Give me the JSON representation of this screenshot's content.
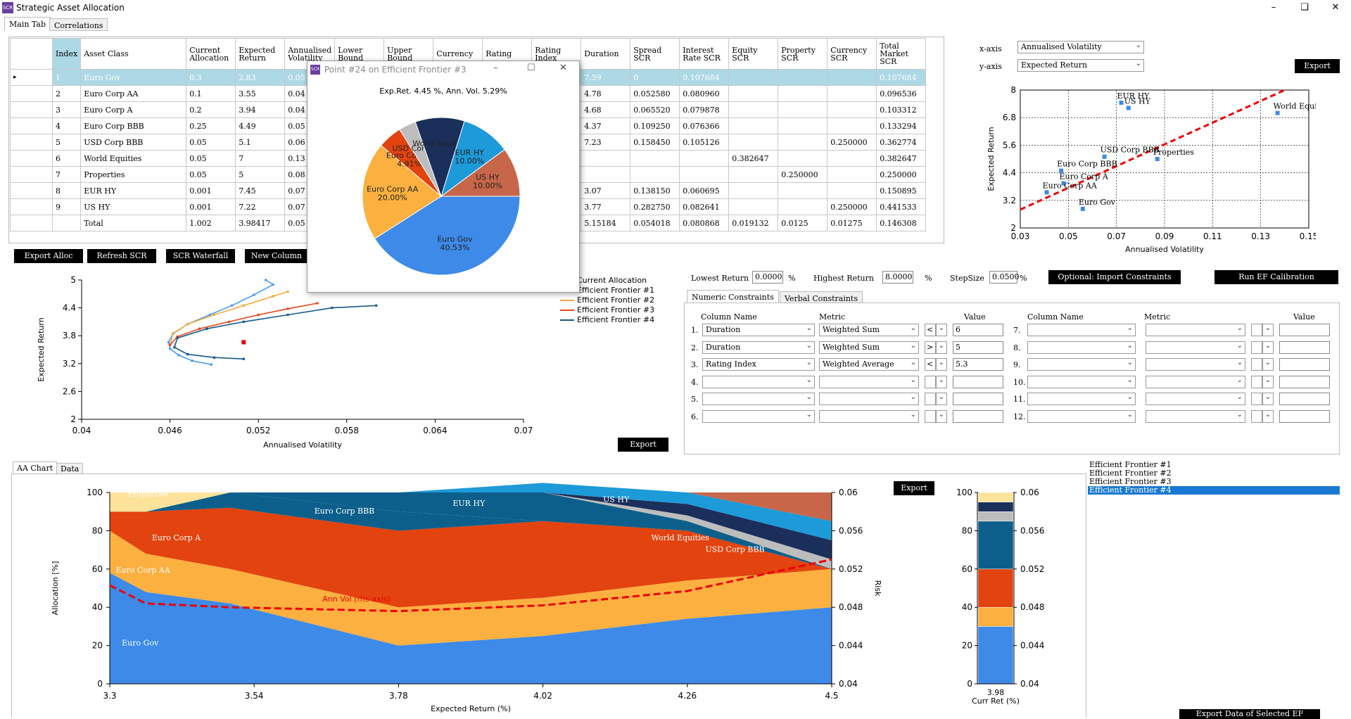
{
  "window": {
    "title": "Strategic Asset Allocation",
    "icon_text": "SCR"
  },
  "main_tabs": [
    "Main Tab",
    "Correlations"
  ],
  "table": {
    "headers": [
      "Index",
      "Asset Class",
      "Current Allocation",
      "Expected Return",
      "Annualised Volatility",
      "Lower Bound",
      "Upper Bound",
      "Currency",
      "Rating",
      "Rating Index",
      "Duration",
      "Spread SCR",
      "Interest Rate SCR",
      "Equity SCR",
      "Property SCR",
      "Currency SCR",
      "Total Market SCR"
    ],
    "rows": [
      [
        "1",
        "Euro Gov",
        "0.3",
        "2.83",
        "0.05",
        "",
        "",
        "",
        "",
        "",
        "7.59",
        "0",
        "0.107684",
        "",
        "",
        "",
        "0.107684"
      ],
      [
        "2",
        "Euro Corp AA",
        "0.1",
        "3.55",
        "0.04",
        "",
        "",
        "",
        "",
        "",
        "4.78",
        "0.052580",
        "0.080960",
        "",
        "",
        "",
        "0.096536"
      ],
      [
        "3",
        "Euro Corp A",
        "0.2",
        "3.94",
        "0.04",
        "",
        "",
        "",
        "",
        "",
        "4.68",
        "0.065520",
        "0.079878",
        "",
        "",
        "",
        "0.103312"
      ],
      [
        "4",
        "Euro Corp BBB",
        "0.25",
        "4.49",
        "0.05",
        "",
        "",
        "",
        "",
        "",
        "4.37",
        "0.109250",
        "0.076366",
        "",
        "",
        "",
        "0.133294"
      ],
      [
        "5",
        "USD Corp BBB",
        "0.05",
        "5.1",
        "0.06",
        "",
        "",
        "",
        "",
        "",
        "7.23",
        "0.158450",
        "0.105126",
        "",
        "",
        "0.250000",
        "0.362774"
      ],
      [
        "6",
        "World Equities",
        "0.05",
        "7",
        "0.13",
        "",
        "",
        "",
        "",
        "",
        "",
        "",
        "",
        "0.382647",
        "",
        "",
        "0.382647"
      ],
      [
        "7",
        "Properties",
        "0.05",
        "5",
        "0.08",
        "",
        "",
        "",
        "",
        "",
        "",
        "",
        "",
        "",
        "0.250000",
        "",
        "0.250000"
      ],
      [
        "8",
        "EUR HY",
        "0.001",
        "7.45",
        "0.07",
        "",
        "",
        "",
        "",
        "",
        "3.07",
        "0.138150",
        "0.060695",
        "",
        "",
        "",
        "0.150895"
      ],
      [
        "9",
        "US HY",
        "0.001",
        "7.22",
        "0.07",
        "",
        "",
        "",
        "",
        "",
        "3.77",
        "0.282750",
        "0.082641",
        "",
        "",
        "0.250000",
        "0.441533"
      ],
      [
        "",
        "Total",
        "1.002",
        "3.98417",
        "0.05",
        "",
        "",
        "",
        "",
        "",
        "5.15184",
        "0.054018",
        "0.080868",
        "0.019132",
        "0.0125",
        "0.01275",
        "0.146308"
      ]
    ]
  },
  "buttons": {
    "export_alloc": "Export Alloc",
    "refresh_scr": "Refresh SCR",
    "scr_waterfall": "SCR Waterfall",
    "new_column": "New Column",
    "export": "Export",
    "import_constraints": "Optional: Import Constraints",
    "run_ef": "Run EF Calibration",
    "export_selected_ef": "Export Data of Selected EF"
  },
  "popup": {
    "title": "Point #24 on Efficient Frontier #3",
    "subtitle": "Exp.Ret. 4.45 %, Ann. Vol. 5.29%",
    "buttons": [
      "–",
      "☐",
      "✕"
    ]
  },
  "scatter_controls": {
    "x_label": "x-axis",
    "x_value": "Annualised Volatility",
    "y_label": "y-axis",
    "y_value": "Expected Return"
  },
  "ef_legend": [
    "Current Allocation",
    "Efficient Frontier #1",
    "Efficient Frontier #2",
    "Efficient Frontier #3",
    "Efficient Frontier #4"
  ],
  "calibration": {
    "lowest_label": "Lowest Return",
    "lowest_value": "0.0000",
    "pct1": "%",
    "highest_label": "Highest Return",
    "highest_value": "8.0000",
    "pct2": "%",
    "step_label": "StepSize",
    "step_value": "0.0500",
    "pct3": "%"
  },
  "constraint_tabs": [
    "Numeric Constraints",
    "Verbal Constraints"
  ],
  "constraints": {
    "col_headers": [
      "Column Name",
      "Metric",
      "Value",
      "Column Name",
      "Metric",
      "Value"
    ],
    "left": [
      {
        "n": "1.",
        "col": "Duration",
        "metric": "Weighted Sum",
        "op": "<",
        "val": "6"
      },
      {
        "n": "2.",
        "col": "Duration",
        "metric": "Weighted Sum",
        "op": ">",
        "val": "5"
      },
      {
        "n": "3.",
        "col": "Rating Index",
        "metric": "Weighted Average",
        "op": "<",
        "val": "5.3"
      },
      {
        "n": "4.",
        "col": "",
        "metric": "",
        "op": "",
        "val": ""
      },
      {
        "n": "5.",
        "col": "",
        "metric": "",
        "op": "",
        "val": ""
      },
      {
        "n": "6.",
        "col": "",
        "metric": "",
        "op": "",
        "val": ""
      }
    ],
    "right": [
      {
        "n": "7."
      },
      {
        "n": "8."
      },
      {
        "n": "9."
      },
      {
        "n": "10."
      },
      {
        "n": "11."
      },
      {
        "n": "12."
      }
    ]
  },
  "aa_tabs": [
    "AA Chart",
    "Data"
  ],
  "ef_list": [
    "Efficient Frontier #1",
    "Efficient Frontier #2",
    "Efficient Frontier #3",
    "Efficient Frontier #4"
  ],
  "colors": {
    "euro_gov": "#3d8ae8",
    "euro_corp_aa": "#fbb040",
    "euro_corp_a": "#e2430f",
    "euro_corp_bbb": "#0c5f8a",
    "eur_hy": "#1d9ad8",
    "us_hy": "#c8664a",
    "world_equities": "#1a2f5a",
    "usd_corp_bbb": "#bdbdbd",
    "properties": "#fde39a",
    "ef1": "#4b9bef",
    "ef2": "#f6a93b",
    "ef3": "#e8451a",
    "ef4": "#165a8a",
    "current": "#e30000"
  },
  "chart_data": [
    {
      "type": "pie",
      "title": "Exp.Ret. 4.45 %, Ann. Vol. 5.29%",
      "slices": [
        {
          "name": "Euro Gov",
          "value": 40.53,
          "label": "40.53%"
        },
        {
          "name": "Euro Corp AA",
          "value": 20.0,
          "label": "20.00%"
        },
        {
          "name": "Euro Corp A",
          "value": 4.91,
          "label": "4.91%"
        },
        {
          "name": "USD Corp BBB",
          "value": 3.5,
          "label": ""
        },
        {
          "name": "World Equities",
          "value": 10.0,
          "label": ""
        },
        {
          "name": "EUR HY",
          "value": 10.0,
          "label": "10.00%"
        },
        {
          "name": "US HY",
          "value": 10.0,
          "label": "10.00%"
        }
      ]
    },
    {
      "type": "scatter",
      "xlabel": "Annualised Volatility",
      "ylabel": "Expected Return",
      "xlim": [
        0.03,
        0.15
      ],
      "ylim": [
        2,
        8
      ],
      "xticks": [
        "0.03",
        "0.05",
        "0.07",
        "0.09",
        "0.11",
        "0.13",
        "0.15"
      ],
      "yticks": [
        "2",
        "3.2",
        "4.4",
        "5.6",
        "6.8",
        "8"
      ],
      "points": [
        {
          "name": "EUR HY",
          "x": 0.072,
          "y": 7.45
        },
        {
          "name": "US HY",
          "x": 0.075,
          "y": 7.22
        },
        {
          "name": "World Equities",
          "x": 0.137,
          "y": 7.0
        },
        {
          "name": "USD Corp BBB",
          "x": 0.065,
          "y": 5.1
        },
        {
          "name": "Properties",
          "x": 0.087,
          "y": 5.0
        },
        {
          "name": "Euro Corp BBB",
          "x": 0.047,
          "y": 4.49
        },
        {
          "name": "Euro Corp A",
          "x": 0.048,
          "y": 3.94
        },
        {
          "name": "Euro Corp AA",
          "x": 0.041,
          "y": 3.55
        },
        {
          "name": "Euro Gov",
          "x": 0.056,
          "y": 2.83
        }
      ],
      "trendline": [
        [
          0.03,
          2.8
        ],
        [
          0.14,
          8.0
        ]
      ]
    },
    {
      "type": "line",
      "xlabel": "Annualised Volatility",
      "ylabel": "Expected Return",
      "xlim": [
        0.04,
        0.07
      ],
      "ylim": [
        2,
        5
      ],
      "xticks": [
        "0.04",
        "0.046",
        "0.052",
        "0.058",
        "0.064",
        "0.07"
      ],
      "yticks": [
        "2",
        "2.6",
        "3.2",
        "3.8",
        "4.4",
        "5"
      ],
      "current": {
        "x": 0.051,
        "y": 3.66
      },
      "series": [
        {
          "name": "Efficient Frontier #1",
          "points": [
            [
              0.0488,
              3.18
            ],
            [
              0.0475,
              3.26
            ],
            [
              0.0466,
              3.38
            ],
            [
              0.046,
              3.52
            ],
            [
              0.0459,
              3.66
            ],
            [
              0.0462,
              3.84
            ],
            [
              0.0472,
              4.05
            ],
            [
              0.0487,
              4.25
            ],
            [
              0.0502,
              4.45
            ],
            [
              0.0517,
              4.68
            ],
            [
              0.053,
              4.9
            ],
            [
              0.0525,
              5.0
            ]
          ]
        },
        {
          "name": "Efficient Frontier #2",
          "points": [
            [
              0.046,
              3.6
            ],
            [
              0.0462,
              3.85
            ],
            [
              0.0472,
              4.05
            ],
            [
              0.049,
              4.25
            ],
            [
              0.051,
              4.45
            ],
            [
              0.053,
              4.65
            ],
            [
              0.054,
              4.75
            ]
          ]
        },
        {
          "name": "Efficient Frontier #3",
          "points": [
            [
              0.046,
              3.6
            ],
            [
              0.0465,
              3.78
            ],
            [
              0.048,
              3.95
            ],
            [
              0.05,
              4.1
            ],
            [
              0.052,
              4.25
            ],
            [
              0.054,
              4.38
            ],
            [
              0.056,
              4.5
            ]
          ]
        },
        {
          "name": "Efficient Frontier #4",
          "points": [
            [
              0.051,
              3.3
            ],
            [
              0.049,
              3.33
            ],
            [
              0.0472,
              3.4
            ],
            [
              0.0463,
              3.55
            ],
            [
              0.0465,
              3.75
            ],
            [
              0.0485,
              3.95
            ],
            [
              0.051,
              4.1
            ],
            [
              0.054,
              4.25
            ],
            [
              0.057,
              4.4
            ],
            [
              0.06,
              4.45
            ]
          ]
        }
      ]
    },
    {
      "type": "area",
      "xlabel": "Expected Return (%)",
      "ylabel": "Allocation [%]",
      "y2label": "Risk",
      "xlim": [
        3.3,
        4.5
      ],
      "ylim": [
        0,
        100
      ],
      "y2lim": [
        0.04,
        0.06
      ],
      "xticks": [
        "3.3",
        "3.54",
        "3.78",
        "4.02",
        "4.26",
        "4.5"
      ],
      "yticks": [
        "0",
        "20",
        "40",
        "60",
        "80",
        "100"
      ],
      "y2ticks": [
        "0.04",
        "0.044",
        "0.048",
        "0.052",
        "0.056",
        "0.06"
      ],
      "x": [
        3.3,
        3.36,
        3.5,
        3.78,
        4.02,
        4.26,
        4.5
      ],
      "series": [
        {
          "name": "Euro Gov",
          "values": [
            58,
            48,
            42,
            20,
            25,
            34,
            40
          ]
        },
        {
          "name": "Euro Corp AA",
          "values": [
            22,
            20,
            18,
            20,
            20,
            20,
            20
          ]
        },
        {
          "name": "Euro Corp A",
          "values": [
            10,
            22,
            32,
            40,
            40,
            26,
            0
          ]
        },
        {
          "name": "Euro Corp BBB",
          "values": [
            0,
            0,
            8,
            10,
            0,
            0,
            0
          ]
        },
        {
          "name": "Euro Corp BBB ext",
          "values": [
            0,
            0,
            0,
            10,
            15,
            5,
            0
          ]
        },
        {
          "name": "USD Corp BBB",
          "values": [
            0,
            0,
            0,
            0,
            0,
            3,
            5
          ]
        },
        {
          "name": "World Equities",
          "values": [
            0,
            0,
            0,
            0,
            0,
            6,
            10
          ]
        },
        {
          "name": "EUR HY",
          "values": [
            0,
            0,
            0,
            0,
            5,
            6,
            10
          ]
        },
        {
          "name": "US HY",
          "values": [
            0,
            0,
            0,
            0,
            0,
            0,
            15
          ]
        },
        {
          "name": "Properties",
          "values": [
            10,
            10,
            0,
            0,
            0,
            0,
            0
          ]
        }
      ],
      "labels": [
        "Euro Gov",
        "Euro Corp AA",
        "Euro Corp A",
        "Euro Corp BBB",
        "EUR HY",
        "US HY",
        "World Equities",
        "USD Corp BBB",
        "Properties"
      ],
      "risk_line": {
        "name": "Ann Vol (rhs-axis)",
        "values": [
          0.0503,
          0.0484,
          0.048,
          0.0476,
          0.0482,
          0.0497,
          0.053
        ]
      }
    },
    {
      "type": "bar",
      "xlabel": "Curr Ret (%)",
      "category": "3.98",
      "ylim": [
        0,
        100
      ],
      "y2lim": [
        0.04,
        0.06
      ],
      "yticks": [
        "0",
        "20",
        "40",
        "60",
        "80",
        "100"
      ],
      "y2ticks": [
        "0.04",
        "0.044",
        "0.048",
        "0.052",
        "0.056",
        "0.06"
      ],
      "stack": [
        {
          "name": "Euro Gov",
          "value": 30
        },
        {
          "name": "Euro Corp AA",
          "value": 10
        },
        {
          "name": "Euro Corp A",
          "value": 20
        },
        {
          "name": "Euro Corp BBB",
          "value": 25
        },
        {
          "name": "USD Corp BBB",
          "value": 5
        },
        {
          "name": "World Equities",
          "value": 5
        },
        {
          "name": "Properties",
          "value": 5
        }
      ]
    }
  ]
}
